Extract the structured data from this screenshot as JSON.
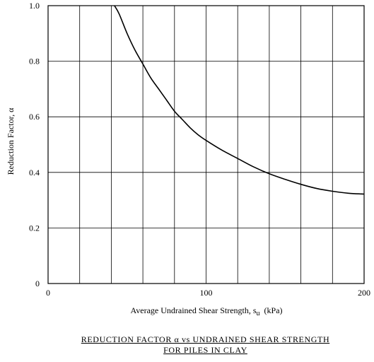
{
  "chart_data": {
    "type": "line",
    "xlabel": "Average Undrained Shear Strength, s",
    "xlabel_subscript": "u",
    "xlabel_unit": "(kPa)",
    "ylabel": "Reduction Factor, α",
    "xlim": [
      0,
      200
    ],
    "ylim": [
      0,
      1.0
    ],
    "x_ticks": [
      "0",
      "100",
      "200"
    ],
    "y_ticks": [
      "0",
      "0.2",
      "0.4",
      "0.6",
      "0.8",
      "1.0"
    ],
    "grid": true,
    "series": [
      {
        "x": [
          42,
          45,
          50,
          55,
          60,
          65,
          70,
          75,
          80,
          85,
          90,
          95,
          100,
          110,
          120,
          130,
          140,
          150,
          160,
          170,
          180,
          190,
          200
        ],
        "y": [
          1.0,
          0.97,
          0.9,
          0.84,
          0.79,
          0.74,
          0.7,
          0.66,
          0.62,
          0.59,
          0.56,
          0.535,
          0.515,
          0.48,
          0.45,
          0.42,
          0.395,
          0.375,
          0.357,
          0.342,
          0.332,
          0.325,
          0.322
        ],
        "color": "#000000"
      }
    ]
  },
  "caption": {
    "line1": "REDUCTION FACTOR α vs UNDRAINED SHEAR STRENGTH",
    "line2": "FOR PILES IN CLAY"
  }
}
